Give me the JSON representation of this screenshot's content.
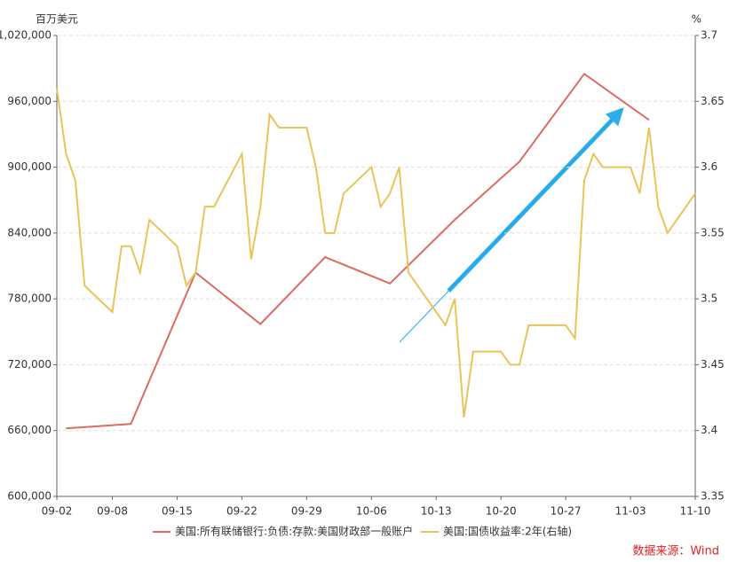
{
  "chart_data": {
    "type": "line",
    "y_unit": "百万美元",
    "y2_unit": "%",
    "source": "数据来源：Wind",
    "xlim": [
      "09-02",
      "11-10"
    ],
    "xticks": [
      "09-02",
      "09-08",
      "09-15",
      "09-22",
      "09-29",
      "10-06",
      "10-13",
      "10-20",
      "10-27",
      "11-03",
      "11-10"
    ],
    "ylim": [
      600000,
      1020000
    ],
    "yticks": [
      {
        "value": 600000,
        "label": "600,000"
      },
      {
        "value": 660000,
        "label": "660,000"
      },
      {
        "value": 720000,
        "label": "720,000"
      },
      {
        "value": 780000,
        "label": "780,000"
      },
      {
        "value": 840000,
        "label": "840,000"
      },
      {
        "value": 900000,
        "label": "900,000"
      },
      {
        "value": 960000,
        "label": "960,000"
      },
      {
        "value": 1020000,
        "label": "1,020,000"
      }
    ],
    "y2lim": [
      3.35,
      3.7
    ],
    "y2ticks": [
      3.35,
      3.4,
      3.45,
      3.5,
      3.55,
      3.6,
      3.65,
      3.7
    ],
    "grid": true,
    "series": [
      {
        "name": "美国:所有联储银行:负债:存款:美国财政部一般账户",
        "color": "#dc6b62",
        "x": [
          "09-03",
          "09-10",
          "09-17",
          "09-24",
          "10-01",
          "10-08",
          "10-15",
          "10-22",
          "10-29",
          "11-05"
        ],
        "values": [
          662000,
          666000,
          804000,
          757000,
          818000,
          794000,
          852000,
          905000,
          985000,
          943000
        ]
      },
      {
        "name": "美国:国债收益率:2年(右轴)",
        "color": "#e9c45a",
        "axis": "y2",
        "x": [
          "09-02",
          "09-03",
          "09-04",
          "09-05",
          "09-08",
          "09-09",
          "09-10",
          "09-11",
          "09-12",
          "09-15",
          "09-16",
          "09-17",
          "09-18",
          "09-19",
          "09-22",
          "09-23",
          "09-24",
          "09-25",
          "09-26",
          "09-29",
          "09-30",
          "10-01",
          "10-02",
          "10-03",
          "10-06",
          "10-07",
          "10-08",
          "10-09",
          "10-10",
          "10-13",
          "10-14",
          "10-15",
          "10-16",
          "10-17",
          "10-20",
          "10-21",
          "10-22",
          "10-23",
          "10-24",
          "10-27",
          "10-28",
          "10-29",
          "10-30",
          "10-31",
          "11-03",
          "11-04",
          "11-05",
          "11-06",
          "11-07",
          "11-10"
        ],
        "values": [
          3.66,
          3.61,
          3.59,
          3.51,
          3.49,
          3.54,
          3.54,
          3.52,
          3.56,
          3.54,
          3.51,
          3.52,
          3.57,
          3.57,
          3.61,
          3.53,
          3.57,
          3.64,
          3.63,
          3.63,
          3.6,
          3.55,
          3.55,
          3.58,
          3.6,
          3.57,
          3.58,
          3.6,
          3.52,
          3.49,
          3.48,
          3.5,
          3.41,
          3.46,
          3.46,
          3.45,
          3.45,
          3.48,
          3.48,
          3.48,
          3.47,
          3.59,
          3.61,
          3.6,
          3.6,
          3.58,
          3.63,
          3.57,
          3.55,
          3.58
        ]
      }
    ]
  }
}
